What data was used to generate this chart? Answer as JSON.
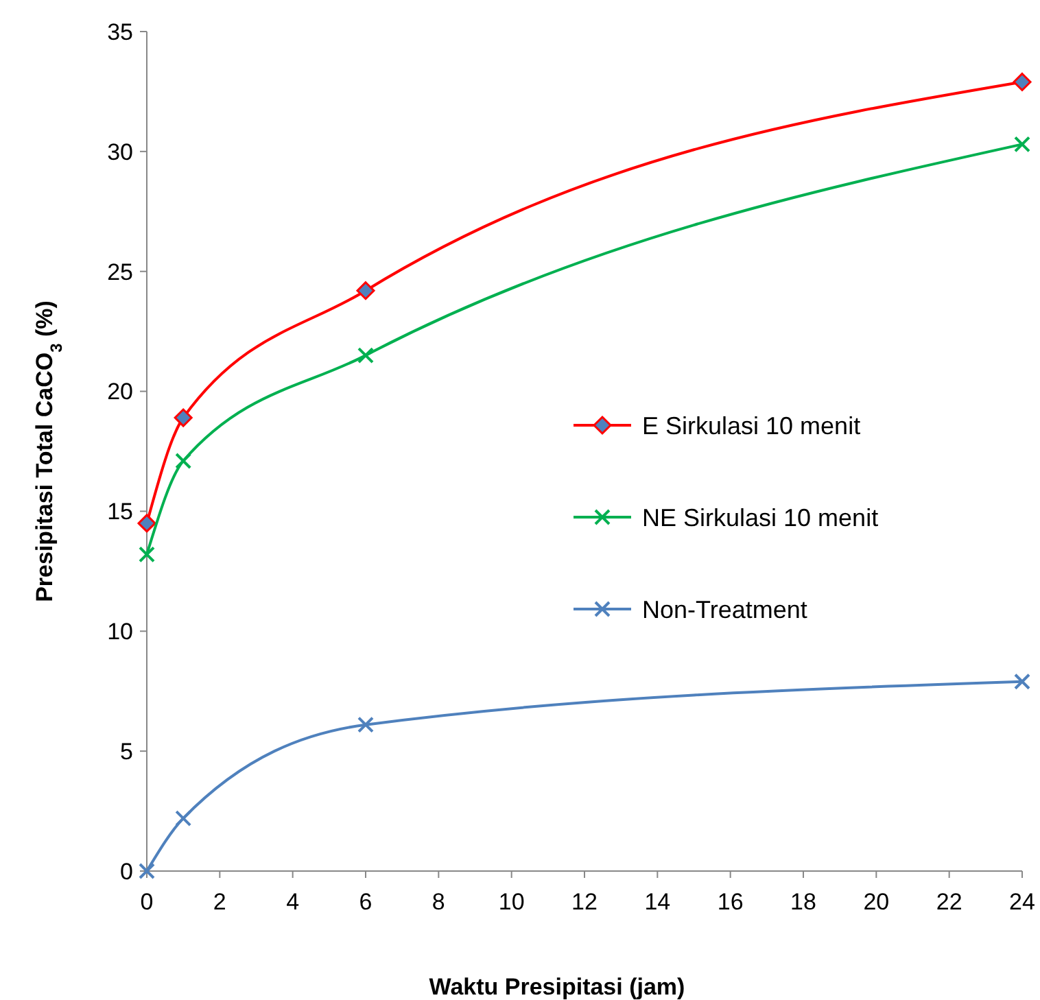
{
  "chart_data": {
    "type": "line",
    "xlabel": "Waktu Presipitasi  (jam)",
    "ylabel": "Presipitasi Total CaCO$_{3}$ (%)",
    "x": [
      0,
      1,
      6,
      24
    ],
    "series": [
      {
        "name": "E Sirkulasi 10 menit",
        "color": "#ff0000",
        "marker": "diamond",
        "values": [
          14.5,
          18.9,
          24.2,
          32.9
        ]
      },
      {
        "name": "NE Sirkulasi 10 menit",
        "color": "#00b050",
        "marker": "cross",
        "values": [
          13.2,
          17.1,
          21.5,
          30.3
        ]
      },
      {
        "name": "Non-Treatment",
        "color": "#4f81bd",
        "marker": "cross",
        "values": [
          0,
          2.2,
          6.1,
          7.9
        ]
      }
    ],
    "xlim": [
      0,
      24
    ],
    "xticks": [
      0,
      2,
      4,
      6,
      8,
      10,
      12,
      14,
      16,
      18,
      20,
      22,
      24
    ],
    "ylim": [
      0,
      35
    ],
    "yticks": [
      0,
      5,
      10,
      15,
      20,
      25,
      30,
      35
    ],
    "grid": false,
    "legend": "right",
    "line_style": "solid"
  }
}
